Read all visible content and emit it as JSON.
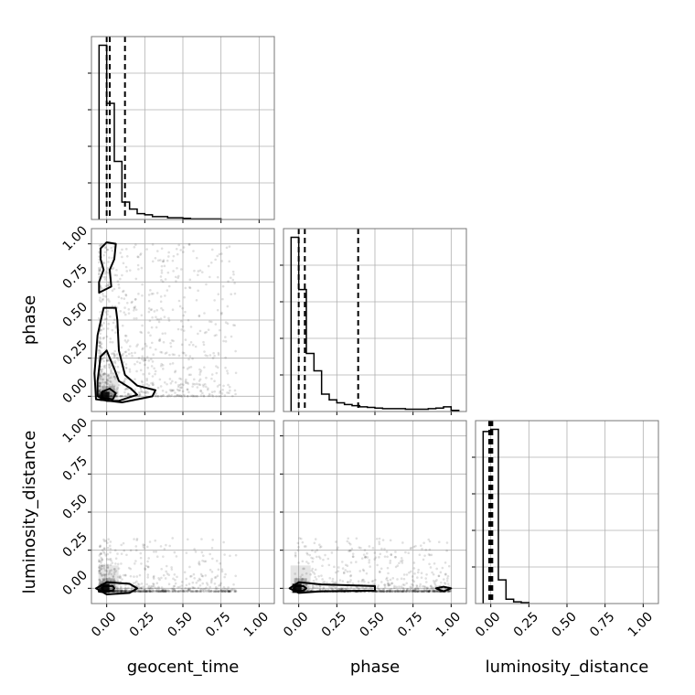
{
  "chart_data": {
    "type": "corner",
    "parameters": [
      "geocent_time",
      "phase",
      "luminosity_distance"
    ],
    "axis_ticks": [
      "0.00",
      "0.25",
      "0.50",
      "0.75",
      "1.00"
    ],
    "tick_values": [
      0,
      0.25,
      0.5,
      0.75,
      1.0
    ],
    "xlim": [
      -0.1,
      1.1
    ],
    "grid": true,
    "histograms": [
      {
        "parameter": "geocent_time",
        "bin_edges": [
          -0.05,
          0.0,
          0.05,
          0.1,
          0.15,
          0.2,
          0.25,
          0.3,
          0.35,
          0.4,
          0.45,
          0.5,
          0.55,
          0.6,
          0.65,
          0.7,
          0.75
        ],
        "counts": [
          3.0,
          2.0,
          1.0,
          0.3,
          0.18,
          0.1,
          0.08,
          0.05,
          0.05,
          0.03,
          0.03,
          0.02,
          0.01,
          0.01,
          0.01,
          0.01
        ],
        "quantiles": [
          0.0,
          0.02,
          0.12
        ]
      },
      {
        "parameter": "phase",
        "bin_edges": [
          -0.05,
          0.0,
          0.05,
          0.1,
          0.15,
          0.2,
          0.25,
          0.3,
          0.35,
          0.4,
          0.45,
          0.5,
          0.55,
          0.6,
          0.65,
          0.7,
          0.75,
          0.8,
          0.85,
          0.9,
          0.95,
          1.0,
          1.05
        ],
        "counts": [
          3.0,
          2.1,
          1.0,
          0.7,
          0.3,
          0.2,
          0.15,
          0.12,
          0.1,
          0.08,
          0.07,
          0.06,
          0.05,
          0.05,
          0.05,
          0.04,
          0.04,
          0.04,
          0.05,
          0.06,
          0.08,
          0.02
        ],
        "quantiles": [
          0.0,
          0.04,
          0.39
        ]
      },
      {
        "parameter": "luminosity_distance",
        "bin_edges": [
          -0.05,
          0.0,
          0.05,
          0.1,
          0.15,
          0.2,
          0.25
        ],
        "counts": [
          4.0,
          4.05,
          0.55,
          0.1,
          0.04,
          0.02
        ],
        "quantiles": [
          -0.01,
          0.0,
          0.01
        ]
      }
    ],
    "pairs": [
      {
        "x": "geocent_time",
        "y": "phase",
        "density_center": [
          0.0,
          0.0
        ],
        "contours": [
          [
            [
              -0.03,
              -0.01
            ],
            [
              0.04,
              -0.02
            ],
            [
              0.06,
              0.02
            ],
            [
              0.02,
              0.05
            ],
            [
              -0.03,
              0.03
            ]
          ],
          [
            [
              -0.06,
              0.0
            ],
            [
              0.0,
              -0.03
            ],
            [
              0.08,
              -0.03
            ],
            [
              0.2,
              0.01
            ],
            [
              0.16,
              0.05
            ],
            [
              0.08,
              0.1
            ],
            [
              0.05,
              0.18
            ],
            [
              0.0,
              0.3
            ],
            [
              -0.04,
              0.26
            ],
            [
              -0.06,
              0.1
            ]
          ],
          [
            [
              -0.07,
              -0.02
            ],
            [
              0.1,
              -0.04
            ],
            [
              0.3,
              0.0
            ],
            [
              0.32,
              0.04
            ],
            [
              0.2,
              0.07
            ],
            [
              0.12,
              0.14
            ],
            [
              0.08,
              0.3
            ],
            [
              0.07,
              0.5
            ],
            [
              0.06,
              0.58
            ],
            [
              -0.02,
              0.58
            ],
            [
              -0.06,
              0.4
            ],
            [
              -0.08,
              0.15
            ]
          ],
          [
            [
              -0.05,
              0.68
            ],
            [
              0.03,
              0.72
            ],
            [
              0.02,
              0.83
            ],
            [
              0.05,
              0.9
            ],
            [
              0.06,
              1.0
            ],
            [
              0.0,
              1.01
            ],
            [
              -0.04,
              0.97
            ],
            [
              -0.04,
              0.9
            ],
            [
              -0.02,
              0.83
            ],
            [
              -0.05,
              0.75
            ]
          ]
        ]
      },
      {
        "x": "geocent_time",
        "y": "luminosity_distance",
        "density_center": [
          0.0,
          0.0
        ],
        "contours": [
          [
            [
              -0.02,
              -0.015
            ],
            [
              0.04,
              -0.015
            ],
            [
              0.05,
              0.0
            ],
            [
              0.04,
              0.015
            ],
            [
              -0.02,
              0.015
            ],
            [
              -0.03,
              0.0
            ]
          ],
          [
            [
              -0.07,
              0.0
            ],
            [
              0.0,
              -0.04
            ],
            [
              0.15,
              -0.03
            ],
            [
              0.2,
              0.0
            ],
            [
              0.15,
              0.03
            ],
            [
              0.0,
              0.04
            ]
          ]
        ]
      },
      {
        "x": "phase",
        "y": "luminosity_distance",
        "density_center": [
          0.0,
          0.0
        ],
        "contours": [
          [
            [
              -0.02,
              -0.015
            ],
            [
              0.03,
              -0.015
            ],
            [
              0.05,
              0.0
            ],
            [
              0.03,
              0.015
            ],
            [
              -0.02,
              0.015
            ],
            [
              -0.03,
              0.0
            ]
          ],
          [
            [
              -0.06,
              0.0
            ],
            [
              0.0,
              -0.03
            ],
            [
              0.15,
              -0.02
            ],
            [
              0.5,
              -0.015
            ],
            [
              0.5,
              0.015
            ],
            [
              0.15,
              0.025
            ],
            [
              0.0,
              0.04
            ]
          ],
          [
            [
              0.9,
              0.0
            ],
            [
              0.95,
              -0.02
            ],
            [
              1.0,
              0.0
            ],
            [
              0.95,
              0.01
            ]
          ]
        ]
      }
    ]
  }
}
